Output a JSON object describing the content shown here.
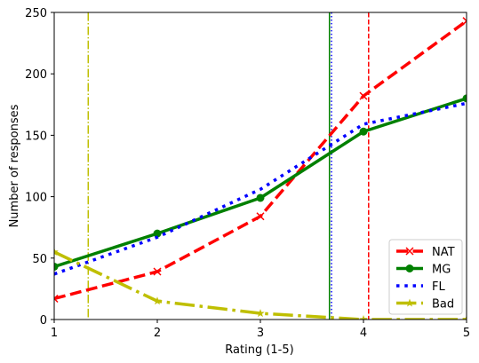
{
  "chart_data": {
    "type": "line",
    "title": "",
    "xlabel": "Rating (1-5)",
    "ylabel": "Number of responses",
    "xlim": [
      1,
      5
    ],
    "ylim": [
      0,
      250
    ],
    "x_ticks": [
      1,
      2,
      3,
      4,
      5
    ],
    "y_ticks": [
      0,
      50,
      100,
      150,
      200,
      250
    ],
    "grid": false,
    "legend_position": "bottom-right",
    "x": [
      1,
      2,
      3,
      4,
      5
    ],
    "series": [
      {
        "name": "NAT",
        "values": [
          17,
          39,
          84,
          182,
          243
        ],
        "color": "#ff0000",
        "dash": "dashed",
        "marker": "x"
      },
      {
        "name": "MG",
        "values": [
          43,
          70,
          99,
          153,
          180
        ],
        "color": "#008000",
        "dash": "solid",
        "marker": "circle"
      },
      {
        "name": "FL",
        "values": [
          37,
          67,
          106,
          159,
          176
        ],
        "color": "#0000ff",
        "dash": "dotted",
        "marker": "none"
      },
      {
        "name": "Bad",
        "values": [
          55,
          15,
          5,
          0,
          0
        ],
        "color": "#bfbf00",
        "dash": "dashdot",
        "marker": "star"
      }
    ],
    "vertical_lines": [
      {
        "x": 1.33,
        "color": "#bfbf00",
        "dash": "dashdot"
      },
      {
        "x": 3.67,
        "color": "#008000",
        "dash": "solid"
      },
      {
        "x": 3.69,
        "color": "#0000ff",
        "dash": "dotted"
      },
      {
        "x": 4.05,
        "color": "#ff0000",
        "dash": "dashed"
      }
    ]
  }
}
